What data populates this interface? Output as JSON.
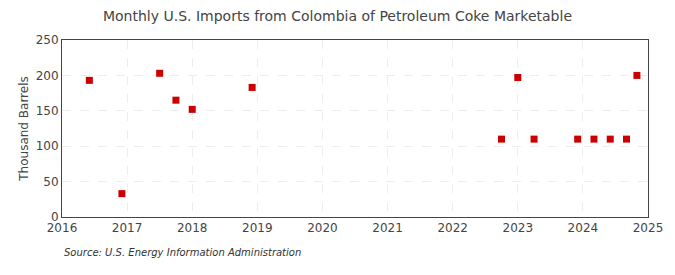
{
  "chart_data": {
    "type": "scatter",
    "title": "Monthly U.S. Imports from Colombia of Petroleum Coke Marketable",
    "ylabel": "Thousand Barrels",
    "annotations": [
      "Source: U.S. Energy Information Administration"
    ],
    "x": [
      2016.42,
      2016.92,
      2017.5,
      2017.75,
      2018.0,
      2018.92,
      2022.75,
      2023.0,
      2023.25,
      2023.92,
      2024.17,
      2024.42,
      2024.67,
      2024.83
    ],
    "values": [
      193,
      33,
      203,
      165,
      152,
      183,
      110,
      197,
      110,
      110,
      110,
      110,
      110,
      200
    ],
    "color": "#cc0000",
    "marker": "square",
    "xlim": [
      2016,
      2025
    ],
    "ylim": [
      0,
      250
    ],
    "xticks": [
      2016,
      2017,
      2018,
      2019,
      2020,
      2021,
      2022,
      2023,
      2024,
      2025
    ],
    "yticks": [
      0,
      50,
      100,
      150,
      200,
      250
    ],
    "grid": true
  }
}
